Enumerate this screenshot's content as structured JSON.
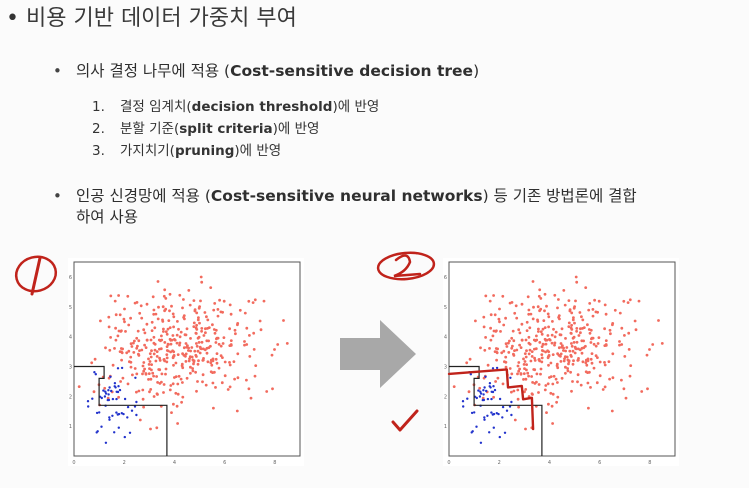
{
  "title": {
    "bullet": "•",
    "text": "비용 기반 데이터 가중치 부여"
  },
  "items": [
    {
      "bullet": "•",
      "prefix": "의사 결정 나무에 적용 (",
      "bold": "Cost-sensitive decision tree",
      "suffix": ")"
    },
    {
      "bullet": "•",
      "line1_prefix": "인공 신경망에 적용 (",
      "line1_bold": "Cost-sensitive neural networks",
      "line1_suffix": ") 등 기존 방법론에 결합",
      "line2": "하여 사용"
    }
  ],
  "subitems": [
    {
      "num": "1.",
      "prefix": "결정 임계치(",
      "bold": "decision threshold",
      "suffix": ")에 반영"
    },
    {
      "num": "2.",
      "prefix": "분할 기준(",
      "bold": "split criteria",
      "suffix": ")에 반영"
    },
    {
      "num": "3.",
      "prefix": "가지치기(",
      "bold": "pruning",
      "suffix": ")에 반영"
    }
  ],
  "annotations": {
    "left_mark": "1",
    "right_mark": "2",
    "check": "✓",
    "colors": {
      "ink": "#c0231b",
      "red_points": "#f26b5e",
      "blue_points": "#2233cc",
      "arrow": "#a8a8a8"
    }
  },
  "chart_data": [
    {
      "type": "scatter",
      "xlim": [
        0,
        9
      ],
      "ylim": [
        0,
        6.5
      ],
      "x_ticks": [
        "0",
        "2",
        "4",
        "6",
        "8"
      ],
      "y_ticks": [
        "1",
        "2",
        "3",
        "4",
        "5",
        "6"
      ],
      "series": [
        {
          "values": "red points (majority class)"
        },
        {
          "values": "blue points (minority class)"
        }
      ],
      "boundary": "step line (black)"
    },
    {
      "type": "scatter",
      "xlim": [
        0,
        9
      ],
      "ylim": [
        0,
        6.5
      ],
      "x_ticks": [
        "0",
        "2",
        "4",
        "6",
        "8"
      ],
      "y_ticks": [
        "1",
        "2",
        "3",
        "4",
        "5",
        "6"
      ],
      "boundary": "step line (black) with red hand-drawn adjusted boundary"
    }
  ]
}
